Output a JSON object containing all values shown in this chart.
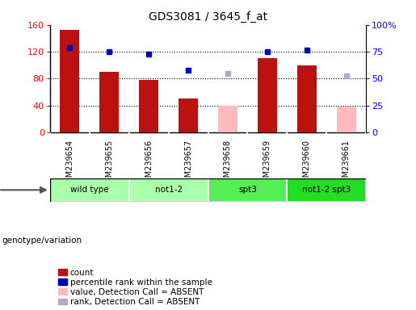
{
  "title": "GDS3081 / 3645_f_at",
  "samples": [
    "GSM239654",
    "GSM239655",
    "GSM239656",
    "GSM239657",
    "GSM239658",
    "GSM239659",
    "GSM239660",
    "GSM239661"
  ],
  "bar_values": [
    152,
    90,
    78,
    50,
    null,
    110,
    100,
    null
  ],
  "bar_absent_values": [
    null,
    null,
    null,
    null,
    40,
    null,
    null,
    38
  ],
  "bar_color": "#bb1111",
  "bar_absent_color": "#ffbbbb",
  "dot_values": [
    126,
    120,
    117,
    null,
    null,
    120,
    122,
    null
  ],
  "dot_absent_values": [
    null,
    null,
    null,
    null,
    88,
    null,
    null,
    84
  ],
  "dot_color": "#0000bb",
  "dot_absent_color": "#aaaacc",
  "dot_size": 5,
  "ylim_left": [
    0,
    160
  ],
  "ylim_right": [
    0,
    100
  ],
  "yticks_left": [
    0,
    40,
    80,
    120,
    160
  ],
  "yticks_right": [
    0,
    25,
    50,
    75,
    100
  ],
  "ytick_labels_right": [
    "0",
    "25",
    "50",
    "75",
    "100%"
  ],
  "dot_657_value": 92,
  "genotype_groups": [
    {
      "label": "wild type",
      "start": 0,
      "end": 2,
      "color": "#aaffaa"
    },
    {
      "label": "not1-2",
      "start": 2,
      "end": 4,
      "color": "#aaffaa"
    },
    {
      "label": "spt3",
      "start": 4,
      "end": 6,
      "color": "#55ee55"
    },
    {
      "label": "not1-2 spt3",
      "start": 6,
      "end": 8,
      "color": "#22dd22"
    }
  ],
  "legend_items": [
    {
      "label": "count",
      "color": "#bb1111",
      "type": "square"
    },
    {
      "label": "percentile rank within the sample",
      "color": "#0000bb",
      "type": "square"
    },
    {
      "label": "value, Detection Call = ABSENT",
      "color": "#ffbbbb",
      "type": "square"
    },
    {
      "label": "rank, Detection Call = ABSENT",
      "color": "#aaaacc",
      "type": "square"
    }
  ],
  "genotype_label": "genotype/variation",
  "bar_width": 0.5,
  "tick_area_color": "#cccccc",
  "plot_bg_color": "#ffffff",
  "fig_bg_color": "#ffffff"
}
